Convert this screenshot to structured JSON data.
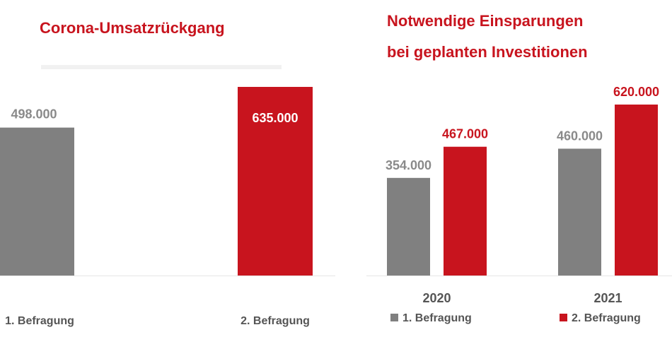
{
  "colors": {
    "grey": "#808080",
    "red": "#c8141e",
    "title": "#c8141e",
    "label_grey": "#8a8a8a",
    "axis": "#e6e6e6"
  },
  "left": {
    "title": "Corona-Umsatzrückgang"
  },
  "right": {
    "title_line1": "Notwendige Einsparungen",
    "title_line2": "bei geplanten Investitionen"
  },
  "legend": {
    "item1": "1. Befragung",
    "item2": "2. Befragung"
  },
  "chart_data": [
    {
      "type": "bar",
      "title": "Corona-Umsatzrückgang",
      "categories": [
        "1. Befragung",
        "2. Befragung"
      ],
      "values": [
        498000,
        635000
      ],
      "value_labels": [
        "498.000",
        "635.000"
      ],
      "colors": [
        "#808080",
        "#c8141e"
      ],
      "ylim": [
        0,
        680000
      ],
      "grid": false
    },
    {
      "type": "bar",
      "title": "Notwendige Einsparungen bei geplanten Investitionen",
      "categories": [
        "2020",
        "2021"
      ],
      "series": [
        {
          "name": "1. Befragung",
          "values": [
            354000,
            460000
          ],
          "value_labels": [
            "354.000",
            "460.000"
          ],
          "color": "#808080"
        },
        {
          "name": "2. Befragung",
          "values": [
            467000,
            620000
          ],
          "value_labels": [
            "467.000",
            "620.000"
          ],
          "color": "#c8141e"
        }
      ],
      "ylim": [
        0,
        700000
      ],
      "legend": "bottom",
      "grid": false
    }
  ]
}
